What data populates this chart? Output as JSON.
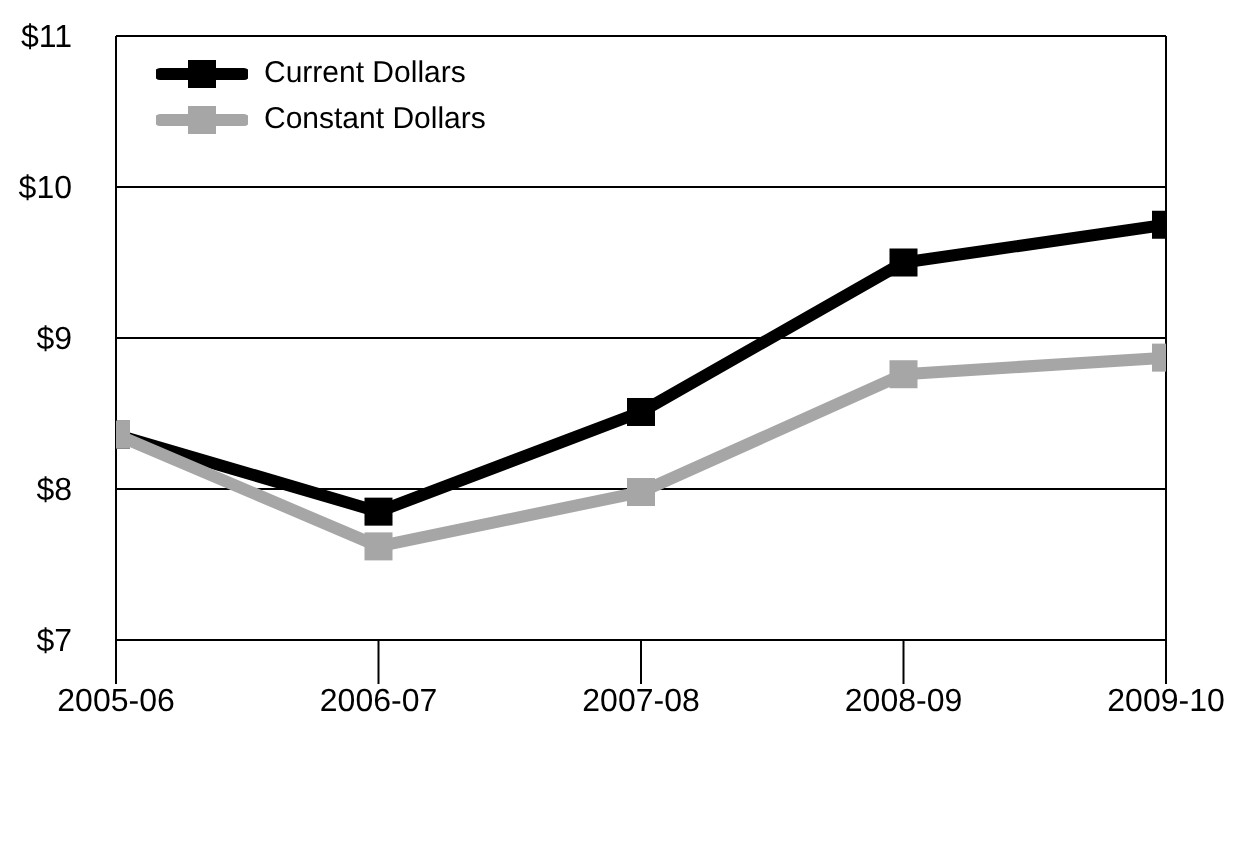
{
  "chart_data": {
    "type": "line",
    "categories": [
      "2005-06",
      "2006-07",
      "2007-08",
      "2008-09",
      "2009-10"
    ],
    "series": [
      {
        "name": "Current Dollars",
        "color": "#000000",
        "values": [
          8.36,
          7.85,
          8.51,
          9.5,
          9.75
        ]
      },
      {
        "name": "Constant Dollars",
        "color": "#a6a6a6",
        "values": [
          8.36,
          7.62,
          7.98,
          8.76,
          8.87
        ]
      }
    ],
    "ylim": [
      7,
      11
    ],
    "yticks": [
      {
        "value": 7,
        "label": "$7"
      },
      {
        "value": 8,
        "label": "$8"
      },
      {
        "value": 9,
        "label": "$9"
      },
      {
        "value": 10,
        "label": "$10"
      },
      {
        "value": 11,
        "label": "$11"
      }
    ],
    "grid": "y",
    "legend": "top left",
    "marker": "square",
    "line_style": "solid"
  }
}
